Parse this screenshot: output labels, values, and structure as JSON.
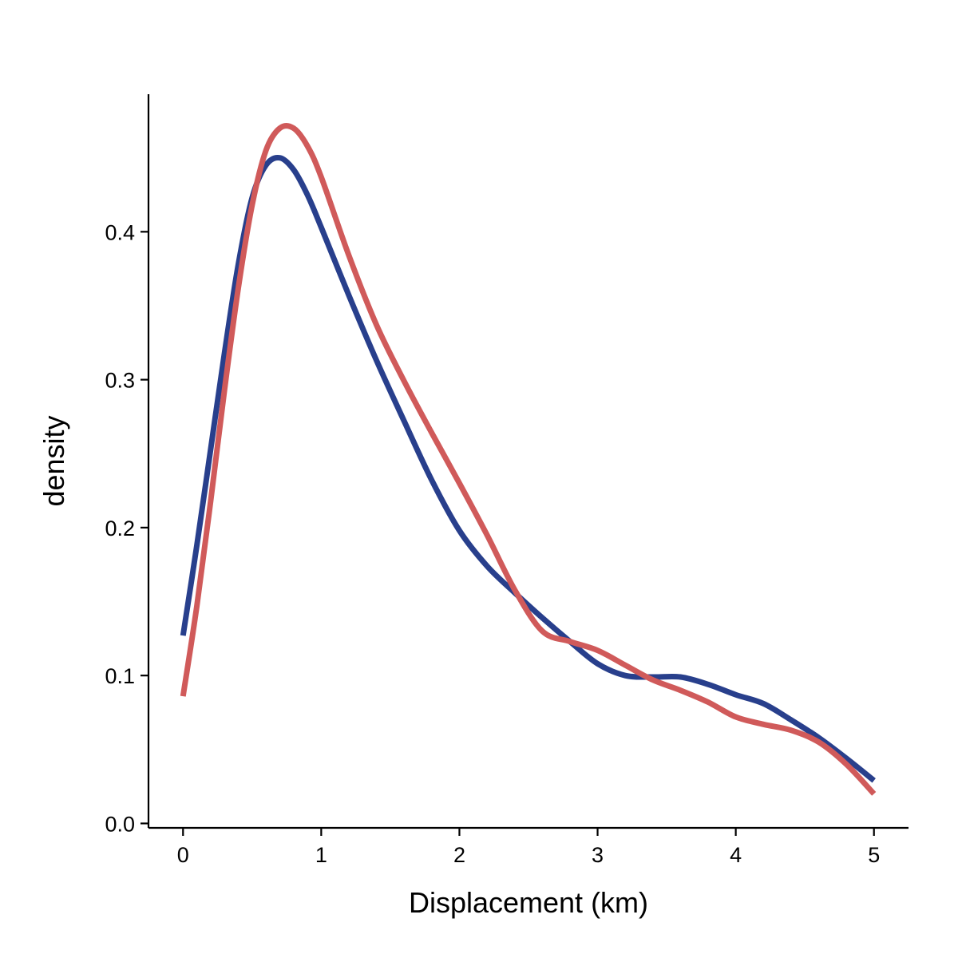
{
  "chart_data": {
    "type": "line",
    "title": "",
    "xlabel": "Displacement (km)",
    "ylabel": "density",
    "xlim": [
      -0.25,
      5.25
    ],
    "ylim": [
      -0.003,
      0.493
    ],
    "x_ticks": [
      0,
      1,
      2,
      3,
      4,
      5
    ],
    "x_tick_labels": [
      "0",
      "1",
      "2",
      "3",
      "4",
      "5"
    ],
    "y_ticks": [
      0.0,
      0.1,
      0.2,
      0.3,
      0.4
    ],
    "y_tick_labels": [
      "0.0",
      "0.1",
      "0.2",
      "0.3",
      "0.4"
    ],
    "grid": false,
    "legend": "none",
    "series": [
      {
        "color": "#283f8c",
        "x": [
          0,
          0.1,
          0.2,
          0.3,
          0.4,
          0.5,
          0.6,
          0.7,
          0.8,
          0.9,
          1.0,
          1.2,
          1.4,
          1.6,
          1.8,
          2.0,
          2.2,
          2.4,
          2.6,
          2.8,
          3.0,
          3.2,
          3.4,
          3.6,
          3.8,
          4.0,
          4.2,
          4.4,
          4.6,
          4.8,
          5.0
        ],
        "y": [
          0.127,
          0.188,
          0.253,
          0.318,
          0.378,
          0.423,
          0.445,
          0.45,
          0.442,
          0.425,
          0.403,
          0.357,
          0.313,
          0.272,
          0.232,
          0.198,
          0.174,
          0.156,
          0.139,
          0.123,
          0.108,
          0.1,
          0.099,
          0.099,
          0.094,
          0.087,
          0.081,
          0.07,
          0.058,
          0.044,
          0.029
        ]
      },
      {
        "color": "#d05a5a",
        "x": [
          0,
          0.1,
          0.2,
          0.3,
          0.4,
          0.5,
          0.6,
          0.7,
          0.8,
          0.9,
          1.0,
          1.2,
          1.4,
          1.6,
          1.8,
          2.0,
          2.2,
          2.4,
          2.6,
          2.8,
          3.0,
          3.2,
          3.4,
          3.6,
          3.8,
          4.0,
          4.2,
          4.4,
          4.6,
          4.8,
          5.0
        ],
        "y": [
          0.086,
          0.147,
          0.218,
          0.293,
          0.362,
          0.418,
          0.455,
          0.47,
          0.47,
          0.458,
          0.437,
          0.384,
          0.337,
          0.299,
          0.264,
          0.23,
          0.195,
          0.158,
          0.13,
          0.123,
          0.117,
          0.107,
          0.097,
          0.09,
          0.082,
          0.072,
          0.067,
          0.063,
          0.055,
          0.04,
          0.02
        ]
      }
    ]
  }
}
